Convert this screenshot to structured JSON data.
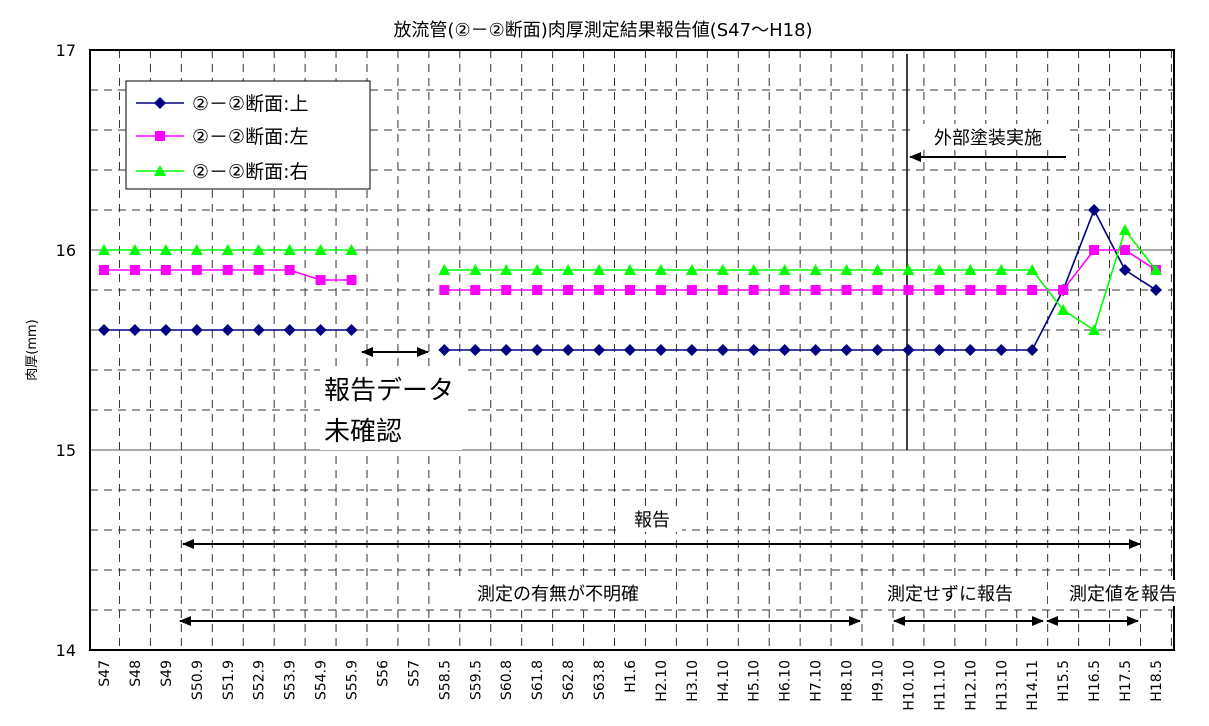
{
  "chart_data": {
    "type": "line",
    "title": "放流管(②－②断面)肉厚測定結果報告値(S47～H18)",
    "ylabel": "肉厚(mm)",
    "xlabel": "",
    "ylim": [
      14,
      17
    ],
    "y_ticks": [
      "14",
      "15",
      "16",
      "17"
    ],
    "grid": true,
    "legend_position": "top-left",
    "categories": [
      "S47",
      "S48",
      "S49",
      "S50.9",
      "S51.9",
      "S52.9",
      "S53.9",
      "S54.9",
      "S55.9",
      "S56",
      "S57",
      "S58.5",
      "S59.5",
      "S60.8",
      "S61.8",
      "S62.8",
      "S63.8",
      "H1.6",
      "H2.10",
      "H3.10",
      "H4.10",
      "H5.10",
      "H6.10",
      "H7.10",
      "H8.10",
      "H9.10",
      "H10.10",
      "H11.10",
      "H12.10",
      "H13.10",
      "H14.11",
      "H15.5",
      "H16.5",
      "H17.5",
      "H18.5"
    ],
    "series": [
      {
        "name": "②－②断面:上",
        "color": "#000080",
        "marker": "diamond",
        "values": [
          15.6,
          15.6,
          15.6,
          15.6,
          15.6,
          15.6,
          15.6,
          15.6,
          15.6,
          null,
          null,
          15.5,
          15.5,
          15.5,
          15.5,
          15.5,
          15.5,
          15.5,
          15.5,
          15.5,
          15.5,
          15.5,
          15.5,
          15.5,
          15.5,
          15.5,
          15.5,
          15.5,
          15.5,
          15.5,
          15.5,
          15.8,
          16.2,
          15.9,
          15.8
        ]
      },
      {
        "name": "②－②断面:左",
        "color": "#ff00ff",
        "marker": "square",
        "values": [
          15.9,
          15.9,
          15.9,
          15.9,
          15.9,
          15.9,
          15.9,
          15.85,
          15.85,
          null,
          null,
          15.8,
          15.8,
          15.8,
          15.8,
          15.8,
          15.8,
          15.8,
          15.8,
          15.8,
          15.8,
          15.8,
          15.8,
          15.8,
          15.8,
          15.8,
          15.8,
          15.8,
          15.8,
          15.8,
          15.8,
          15.8,
          16.0,
          16.0,
          15.9
        ]
      },
      {
        "name": "②－②断面:右",
        "color": "#00ff00",
        "marker": "triangle",
        "values": [
          16.0,
          16.0,
          16.0,
          16.0,
          16.0,
          16.0,
          16.0,
          16.0,
          16.0,
          null,
          null,
          15.9,
          15.9,
          15.9,
          15.9,
          15.9,
          15.9,
          15.9,
          15.9,
          15.9,
          15.9,
          15.9,
          15.9,
          15.9,
          15.9,
          15.9,
          15.9,
          15.9,
          15.9,
          15.9,
          15.9,
          15.7,
          15.6,
          16.1,
          15.9
        ]
      }
    ],
    "annotations": {
      "exterior_coating": "外部塗装実施",
      "data_unconfirmed_line1": "報告データ",
      "data_unconfirmed_line2": "未確認",
      "reported": "報告",
      "unclear": "測定の有無が不明確",
      "reported_without_measure": "測定せずに報告",
      "reported_measured": "測定値を報告"
    }
  }
}
